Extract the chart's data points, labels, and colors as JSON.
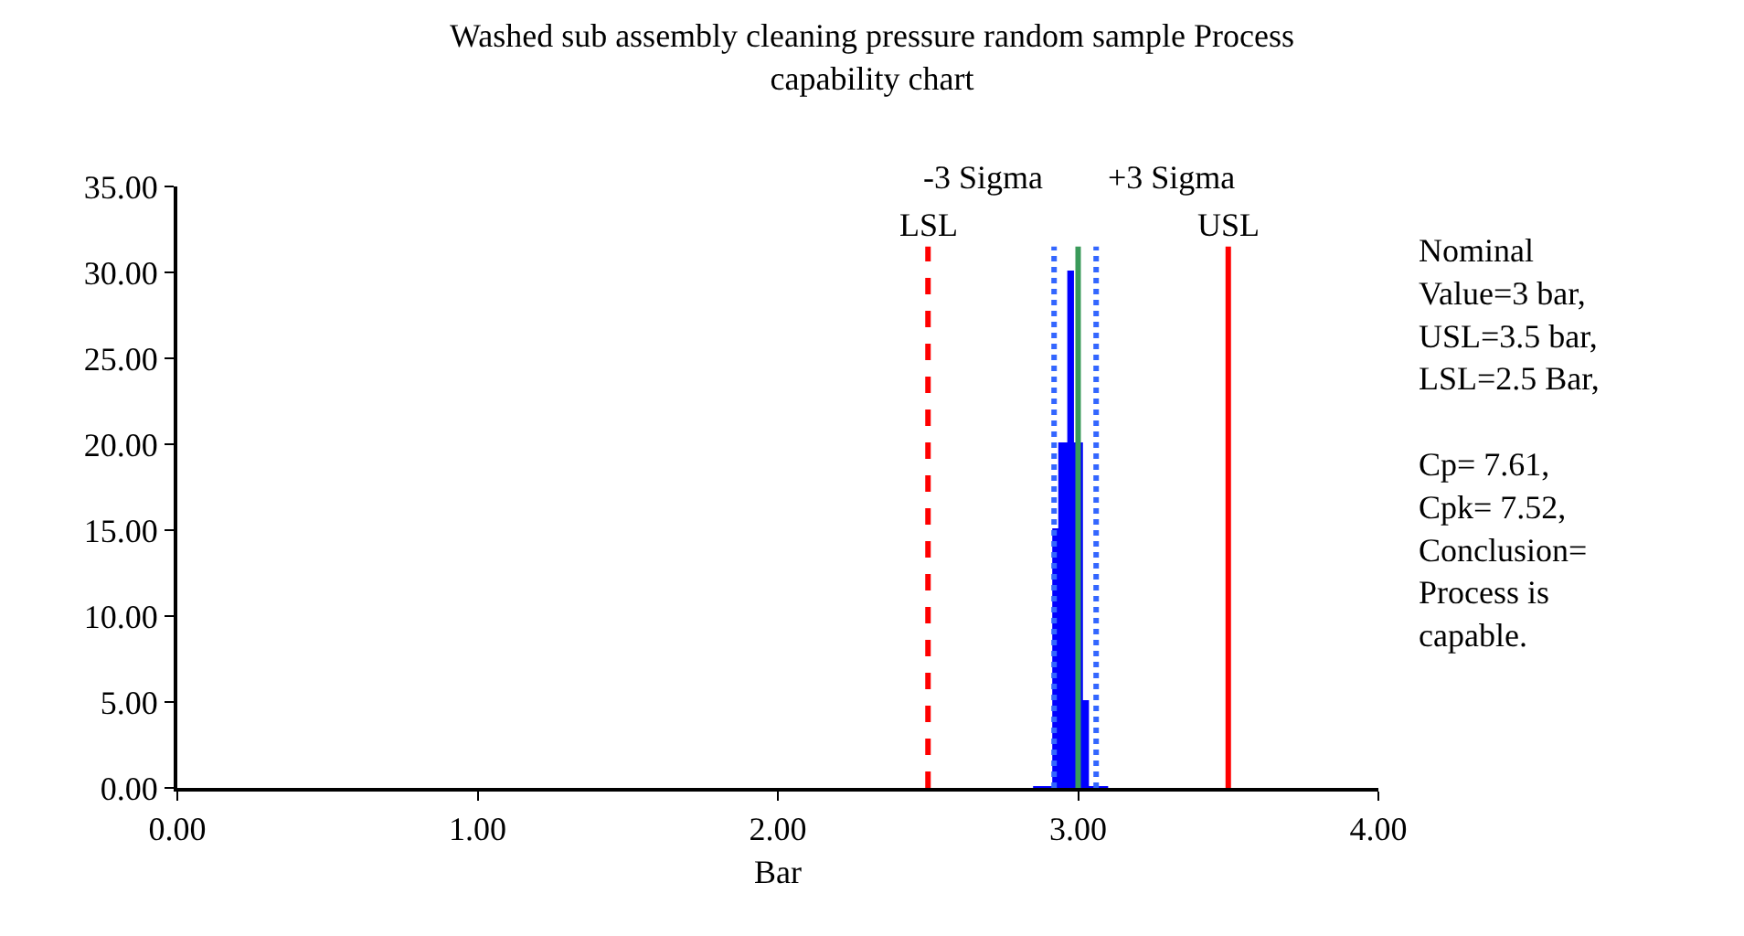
{
  "chart_data": {
    "type": "area",
    "title": "Washed sub assembly cleaning pressure random sample Process\ncapability chart",
    "xlabel": "Bar",
    "series": [
      {
        "color": "#0000ff",
        "x": [
          2.85,
          2.92,
          2.92,
          2.94,
          2.94,
          2.97,
          2.97,
          2.98,
          2.98,
          3.01,
          3.01,
          3.03,
          3.03,
          3.05,
          3.05,
          3.1
        ],
        "values": [
          0,
          0,
          15,
          15,
          20,
          20,
          30,
          30,
          20,
          20,
          5,
          5,
          0,
          0,
          0,
          0
        ]
      }
    ],
    "ref_lines": [
      {
        "axis": "x",
        "value": 2.5,
        "label": "LSL",
        "color": "#ff0000",
        "line_style": "dashed"
      },
      {
        "axis": "x",
        "value": 3.5,
        "label": "USL",
        "color": "#ff0000",
        "line_style": "solid"
      },
      {
        "axis": "x",
        "value": 2.92,
        "label": "-3 Sigma",
        "color": "#3366ff",
        "line_style": "dotted"
      },
      {
        "axis": "x",
        "value": 3.06,
        "label": "+3 Sigma",
        "color": "#3366ff",
        "line_style": "dotted"
      },
      {
        "axis": "x",
        "value": 3.0,
        "label": null,
        "color": "#3a9a5a",
        "line_style": "solid"
      }
    ],
    "annotations": [
      "Nominal\nValue=3 bar,\nUSL=3.5 bar,\nLSL=2.5 Bar,\n\nCp= 7.61,\nCpk= 7.52,\nConclusion=\nProcess is\ncapable."
    ],
    "xlim": [
      0,
      4
    ],
    "ylim": [
      0,
      35
    ],
    "xticks": [
      {
        "value": 0,
        "label": "0.00"
      },
      {
        "value": 1,
        "label": "1.00"
      },
      {
        "value": 2,
        "label": "2.00"
      },
      {
        "value": 3,
        "label": "3.00"
      },
      {
        "value": 4,
        "label": "4.00"
      }
    ],
    "yticks": [
      {
        "value": 0,
        "label": "0.00"
      },
      {
        "value": 5,
        "label": "5.00"
      },
      {
        "value": 10,
        "label": "10.00"
      },
      {
        "value": 15,
        "label": "15.00"
      },
      {
        "value": 20,
        "label": "20.00"
      },
      {
        "value": 25,
        "label": "25.00"
      },
      {
        "value": 30,
        "label": "30.00"
      },
      {
        "value": 35,
        "label": "35.00"
      }
    ]
  }
}
